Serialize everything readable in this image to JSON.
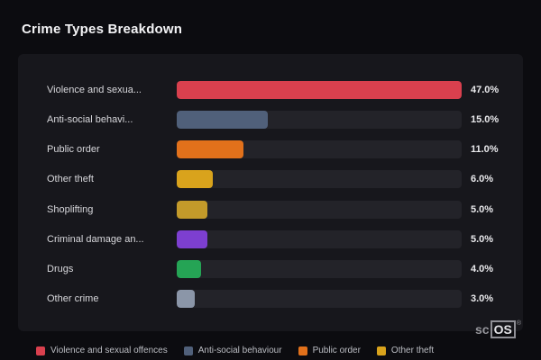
{
  "page": {
    "title": "Crime Types Breakdown"
  },
  "watermark": {
    "prefix": "sc",
    "suffix": "OS",
    "registered": "®"
  },
  "colors": {
    "background": "#0c0c10",
    "card": "#17171c",
    "track": "#232329",
    "text": "#d8d8dc",
    "value_text": "#e9e9ec"
  },
  "chart_data": {
    "type": "bar",
    "orientation": "horizontal",
    "title": "Crime Types Breakdown",
    "xlim": [
      0,
      47
    ],
    "grid": false,
    "legend_position": "bottom",
    "categories": [
      "Violence and sexua...",
      "Anti-social behavi...",
      "Public order",
      "Other theft",
      "Shoplifting",
      "Criminal damage an...",
      "Drugs",
      "Other crime"
    ],
    "values": [
      47.0,
      15.0,
      11.0,
      6.0,
      5.0,
      5.0,
      4.0,
      3.0
    ],
    "rows": [
      {
        "label": "Violence and sexua...",
        "value": 47.0,
        "value_label": "47.0%",
        "color": "#d9404e"
      },
      {
        "label": "Anti-social behavi...",
        "value": 15.0,
        "value_label": "15.0%",
        "color": "#50607a"
      },
      {
        "label": "Public order",
        "value": 11.0,
        "value_label": "11.0%",
        "color": "#e2711b"
      },
      {
        "label": "Other theft",
        "value": 6.0,
        "value_label": "6.0%",
        "color": "#d9a31c"
      },
      {
        "label": "Shoplifting",
        "value": 5.0,
        "value_label": "5.0%",
        "color": "#c39a2a"
      },
      {
        "label": "Criminal damage an...",
        "value": 5.0,
        "value_label": "5.0%",
        "color": "#7d3fd0"
      },
      {
        "label": "Drugs",
        "value": 4.0,
        "value_label": "4.0%",
        "color": "#25a455"
      },
      {
        "label": "Other crime",
        "value": 3.0,
        "value_label": "3.0%",
        "color": "#8b96a8"
      }
    ],
    "legend": [
      {
        "label": "Violence and sexual offences",
        "color": "#d9404e"
      },
      {
        "label": "Anti-social behaviour",
        "color": "#50607a"
      },
      {
        "label": "Public order",
        "color": "#e2711b"
      },
      {
        "label": "Other theft",
        "color": "#d9a31c"
      }
    ]
  }
}
